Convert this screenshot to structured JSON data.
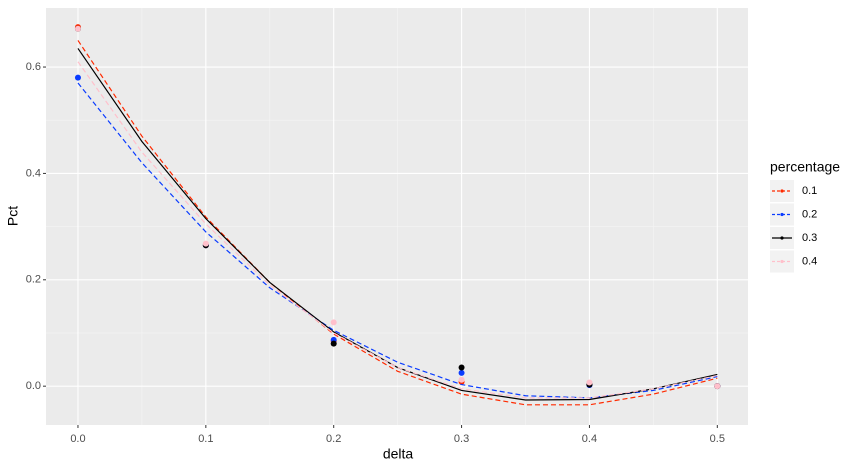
{
  "chart_data": {
    "type": "scatter",
    "x_label": "delta",
    "y_label": "Pct",
    "legend_title": "percentage",
    "legend_position": "right",
    "grid": true,
    "x": [
      0,
      0.1,
      0.2,
      0.3,
      0.4,
      0.5
    ],
    "fit_x": [
      0,
      0.05,
      0.1,
      0.15,
      0.2,
      0.25,
      0.3,
      0.35,
      0.4,
      0.45,
      0.5
    ],
    "xlim": [
      -0.025,
      0.524
    ],
    "ylim": [
      -0.073,
      0.711
    ],
    "xticks": [
      {
        "value": 0,
        "label": "0.0"
      },
      0.1,
      0.2,
      0.3,
      0.4,
      0.5
    ],
    "yticks": [
      {
        "value": 0,
        "label": "0.0"
      },
      0.2,
      0.4,
      0.6
    ],
    "series": [
      {
        "name": "0.1",
        "color": "#ff2a00",
        "linetype": "dashed",
        "values": [
          0.675,
          0.265,
          0.085,
          0.008,
          0.003,
          0.0
        ],
        "fit": [
          0.65,
          0.47,
          0.318,
          0.195,
          0.098,
          0.028,
          -0.015,
          -0.035,
          -0.035,
          -0.015,
          0.015
        ]
      },
      {
        "name": "0.2",
        "color": "#0a3cff",
        "linetype": "dashed",
        "values": [
          0.58,
          0.265,
          0.087,
          0.025,
          0.002,
          0.0
        ],
        "fit": [
          0.57,
          0.42,
          0.29,
          0.185,
          0.105,
          0.045,
          0.003,
          -0.018,
          -0.022,
          -0.008,
          0.018
        ]
      },
      {
        "name": "0.3",
        "color": "#000000",
        "linetype": "solid",
        "values": [
          0.672,
          0.265,
          0.08,
          0.035,
          0.003,
          0.0
        ],
        "fit": [
          0.635,
          0.46,
          0.315,
          0.195,
          0.102,
          0.035,
          -0.008,
          -0.026,
          -0.025,
          -0.005,
          0.022
        ]
      },
      {
        "name": "0.4",
        "color": "#ffc0cb",
        "linetype": "dashed",
        "values": [
          0.672,
          0.268,
          0.12,
          0.012,
          0.007,
          0.0
        ],
        "fit": [
          0.61,
          0.44,
          0.305,
          0.19,
          0.1,
          0.035,
          -0.005,
          -0.022,
          -0.022,
          -0.005,
          0.02
        ]
      }
    ]
  }
}
